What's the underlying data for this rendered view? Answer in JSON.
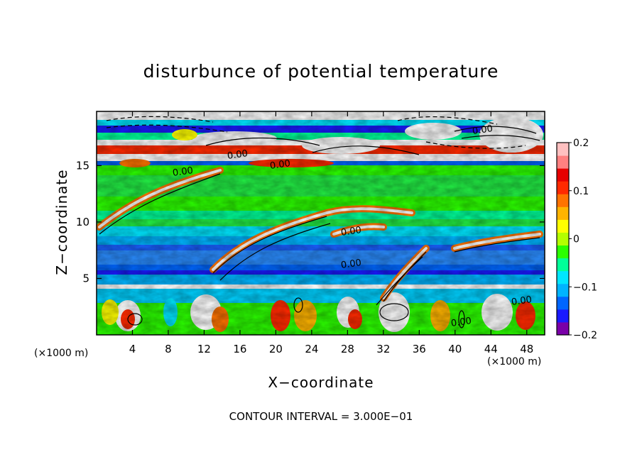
{
  "chart_data": {
    "type": "heatmap",
    "title": "disturbunce of potential temperature",
    "xlabel": "X−coordinate",
    "ylabel": "Z−coordinate",
    "x_unit_label": "(×1000 m)",
    "x_unit_label_right": "(×1000 m)",
    "xlim": [
      0,
      50
    ],
    "ylim": [
      0,
      19.8
    ],
    "xticks": [
      4,
      8,
      12,
      16,
      20,
      24,
      28,
      32,
      36,
      40,
      44,
      48
    ],
    "yticks": [
      5,
      10,
      15
    ],
    "colorbar": {
      "min": -0.2,
      "max": 0.2,
      "tick_values": [
        0.2,
        0.1,
        0,
        -0.1,
        -0.2
      ],
      "tick_labels": [
        "0.2",
        "0.1",
        "0",
        "−0.1",
        "−0.2"
      ],
      "colors": [
        "#7a00a8",
        "#1a1aff",
        "#0066ff",
        "#00b4ff",
        "#00e6ff",
        "#00ff99",
        "#2bff00",
        "#b4ff00",
        "#ffff00",
        "#ffb400",
        "#ff7300",
        "#ff2a00",
        "#e60000",
        "#ff8080",
        "#ffc0c0"
      ]
    },
    "contour_labels": [
      "0.00",
      "0.00",
      "0.00",
      "0.00",
      "0.00",
      "0.00",
      "0.00",
      "0.00"
    ],
    "contour_interval_text": "CONTOUR INTERVAL = 3.000E−01"
  }
}
